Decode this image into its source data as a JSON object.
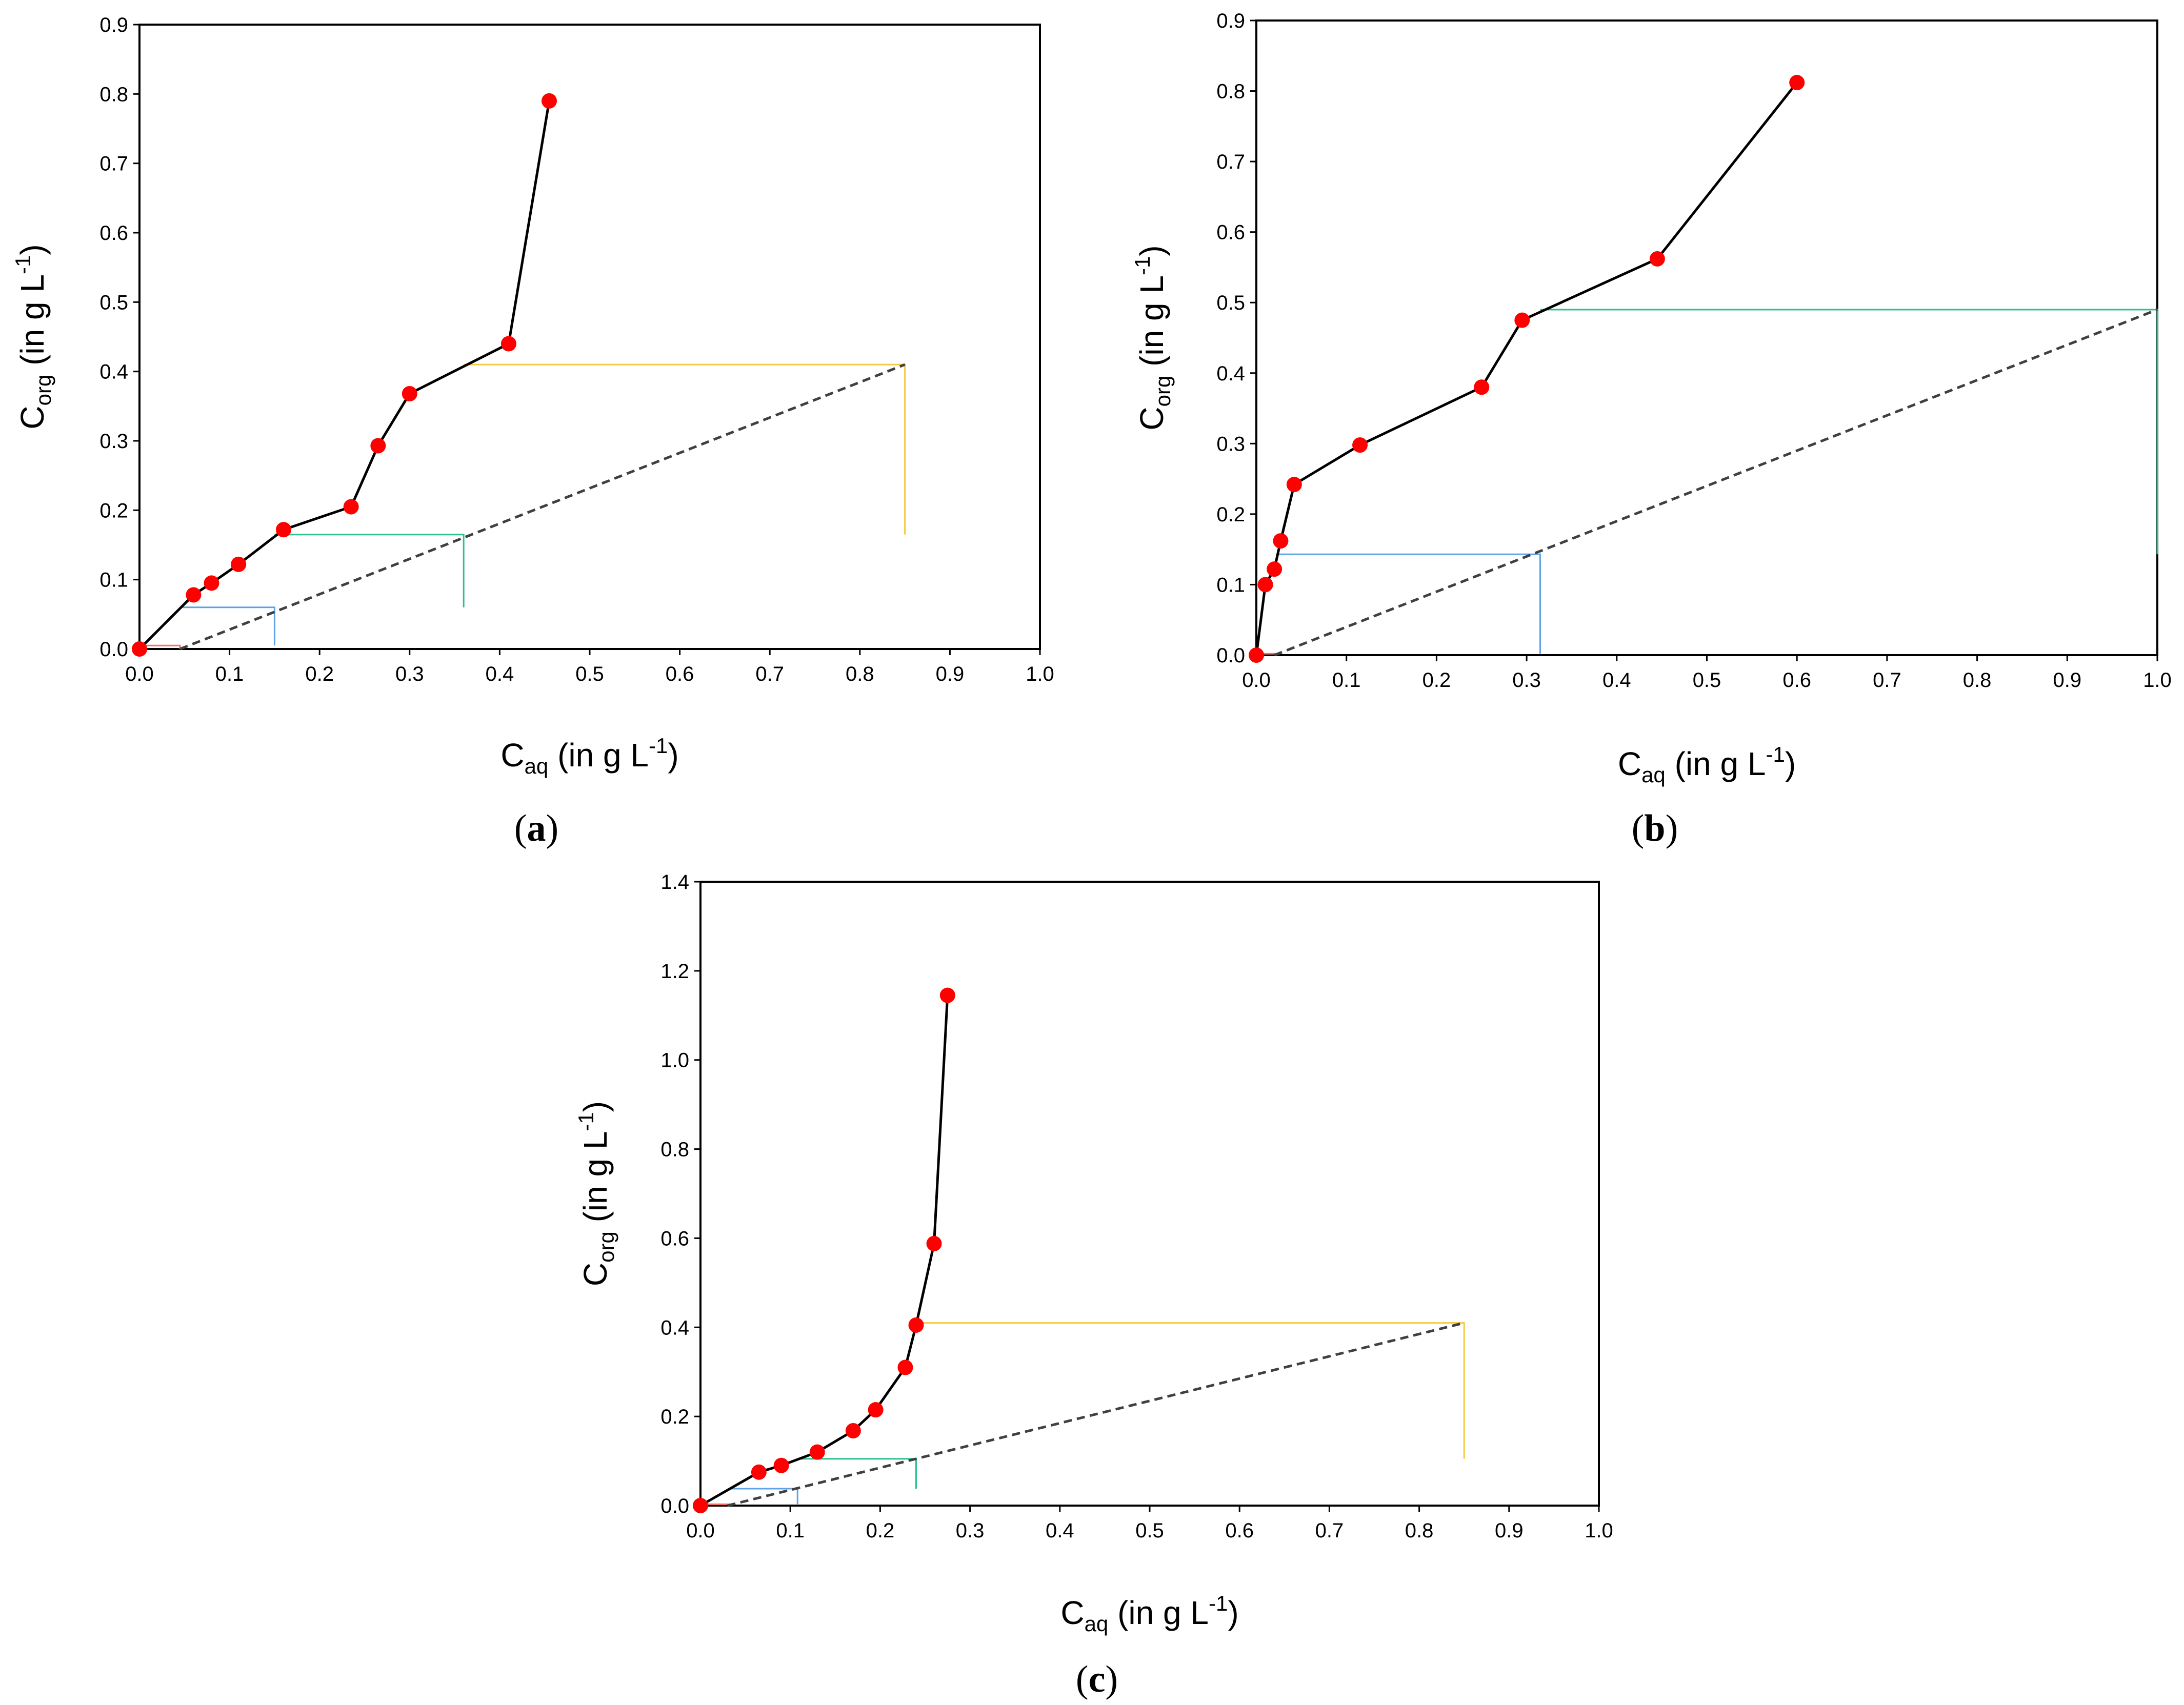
{
  "figure": {
    "colors": {
      "equilibrium_points": "#ff0000",
      "equilibrium_line": "#000000",
      "operating_line": "#404040",
      "stage_colors": [
        "#ff6b6b",
        "#5ba3e6",
        "#2cc08a",
        "#f5c842"
      ]
    }
  },
  "chart_data": [
    {
      "id": "a",
      "type": "scatter",
      "caption": {
        "open": "(",
        "letter": "a",
        "close": ")"
      },
      "xlabel": {
        "main": "C",
        "sub": "aq",
        "text": " (in g L",
        "sup": "-1",
        "end": ")"
      },
      "ylabel": {
        "main": "C",
        "sub": "org",
        "text": " (in g L",
        "sup": "-1",
        "end": ")"
      },
      "xlim": [
        0,
        1.0
      ],
      "ylim": [
        0,
        0.9
      ],
      "xticks": [
        "0.0",
        "0.1",
        "0.2",
        "0.3",
        "0.4",
        "0.5",
        "0.6",
        "0.7",
        "0.8",
        "0.9",
        "1.0"
      ],
      "yticks": [
        "0.0",
        "0.1",
        "0.2",
        "0.3",
        "0.4",
        "0.5",
        "0.6",
        "0.7",
        "0.8",
        "0.9"
      ],
      "equilibrium": {
        "x": [
          0.0,
          0.06,
          0.08,
          0.11,
          0.16,
          0.235,
          0.265,
          0.3,
          0.41,
          0.455
        ],
        "y": [
          0.0,
          0.078,
          0.095,
          0.122,
          0.172,
          0.205,
          0.293,
          0.368,
          0.44,
          0.79
        ]
      },
      "operating_line": {
        "x": [
          0.045,
          0.85
        ],
        "y": [
          0.0,
          0.41
        ]
      },
      "stages": [
        {
          "x1": 0.0,
          "y": 0.005,
          "x2": 0.045,
          "y2": 0.0
        },
        {
          "x1": 0.048,
          "y": 0.06,
          "x2": 0.15,
          "y2": 0.005
        },
        {
          "x1": 0.15,
          "y": 0.165,
          "x2": 0.36,
          "y2": 0.06
        },
        {
          "x1": 0.36,
          "y": 0.41,
          "x2": 0.85,
          "y2": 0.165
        }
      ]
    },
    {
      "id": "b",
      "type": "scatter",
      "caption": {
        "open": "(",
        "letter": "b",
        "close": ")"
      },
      "xlabel": {
        "main": "C",
        "sub": "aq",
        "text": " (in g L",
        "sup": "-1",
        "end": ")"
      },
      "ylabel": {
        "main": "C",
        "sub": "org",
        "text": " (in g L",
        "sup": "-1",
        "end": ")"
      },
      "xlim": [
        0,
        1.0
      ],
      "ylim": [
        0,
        0.9
      ],
      "xticks": [
        "0.0",
        "0.1",
        "0.2",
        "0.3",
        "0.4",
        "0.5",
        "0.6",
        "0.7",
        "0.8",
        "0.9",
        "1.0"
      ],
      "yticks": [
        "0.0",
        "0.1",
        "0.2",
        "0.3",
        "0.4",
        "0.5",
        "0.6",
        "0.7",
        "0.8",
        "0.9"
      ],
      "equilibrium": {
        "x": [
          0.0,
          0.01,
          0.02,
          0.027,
          0.042,
          0.115,
          0.25,
          0.295,
          0.445,
          0.6
        ],
        "y": [
          0.0,
          0.1,
          0.122,
          0.162,
          0.242,
          0.298,
          0.38,
          0.475,
          0.562,
          0.812
        ]
      },
      "operating_line": {
        "x": [
          0.02,
          1.0
        ],
        "y": [
          0.0,
          0.49
        ]
      },
      "stages": [
        {
          "x1": 0.0,
          "y": 0.002,
          "x2": 0.022,
          "y2": 0.0
        },
        {
          "x1": 0.022,
          "y": 0.143,
          "x2": 0.315,
          "y2": 0.002
        },
        {
          "x1": 0.315,
          "y": 0.49,
          "x2": 1.0,
          "y2": 0.143
        }
      ]
    },
    {
      "id": "c",
      "type": "scatter",
      "caption": {
        "open": "(",
        "letter": "c",
        "close": ")"
      },
      "xlabel": {
        "main": "C",
        "sub": "aq",
        "text": " (in g L",
        "sup": "-1",
        "end": ")"
      },
      "ylabel": {
        "main": "C",
        "sub": "org",
        "text": " (in g L",
        "sup": "-1",
        "end": ")"
      },
      "xlim": [
        0,
        1.0
      ],
      "ylim": [
        0,
        1.4
      ],
      "xticks": [
        "0.0",
        "0.1",
        "0.2",
        "0.3",
        "0.4",
        "0.5",
        "0.6",
        "0.7",
        "0.8",
        "0.9",
        "1.0"
      ],
      "yticks": [
        "0.0",
        "0.2",
        "0.4",
        "0.6",
        "0.8",
        "1.0",
        "1.2",
        "1.4"
      ],
      "equilibrium": {
        "x": [
          0.0,
          0.065,
          0.09,
          0.13,
          0.17,
          0.195,
          0.228,
          0.24,
          0.26,
          0.275
        ],
        "y": [
          0.0,
          0.075,
          0.09,
          0.12,
          0.168,
          0.215,
          0.31,
          0.405,
          0.588,
          1.145
        ]
      },
      "operating_line": {
        "x": [
          0.03,
          0.85
        ],
        "y": [
          0.0,
          0.41
        ]
      },
      "stages": [
        {
          "x1": 0.0,
          "y": 0.003,
          "x2": 0.032,
          "y2": 0.0
        },
        {
          "x1": 0.032,
          "y": 0.038,
          "x2": 0.108,
          "y2": 0.003
        },
        {
          "x1": 0.108,
          "y": 0.105,
          "x2": 0.24,
          "y2": 0.038
        },
        {
          "x1": 0.24,
          "y": 0.41,
          "x2": 0.85,
          "y2": 0.105
        }
      ]
    }
  ]
}
